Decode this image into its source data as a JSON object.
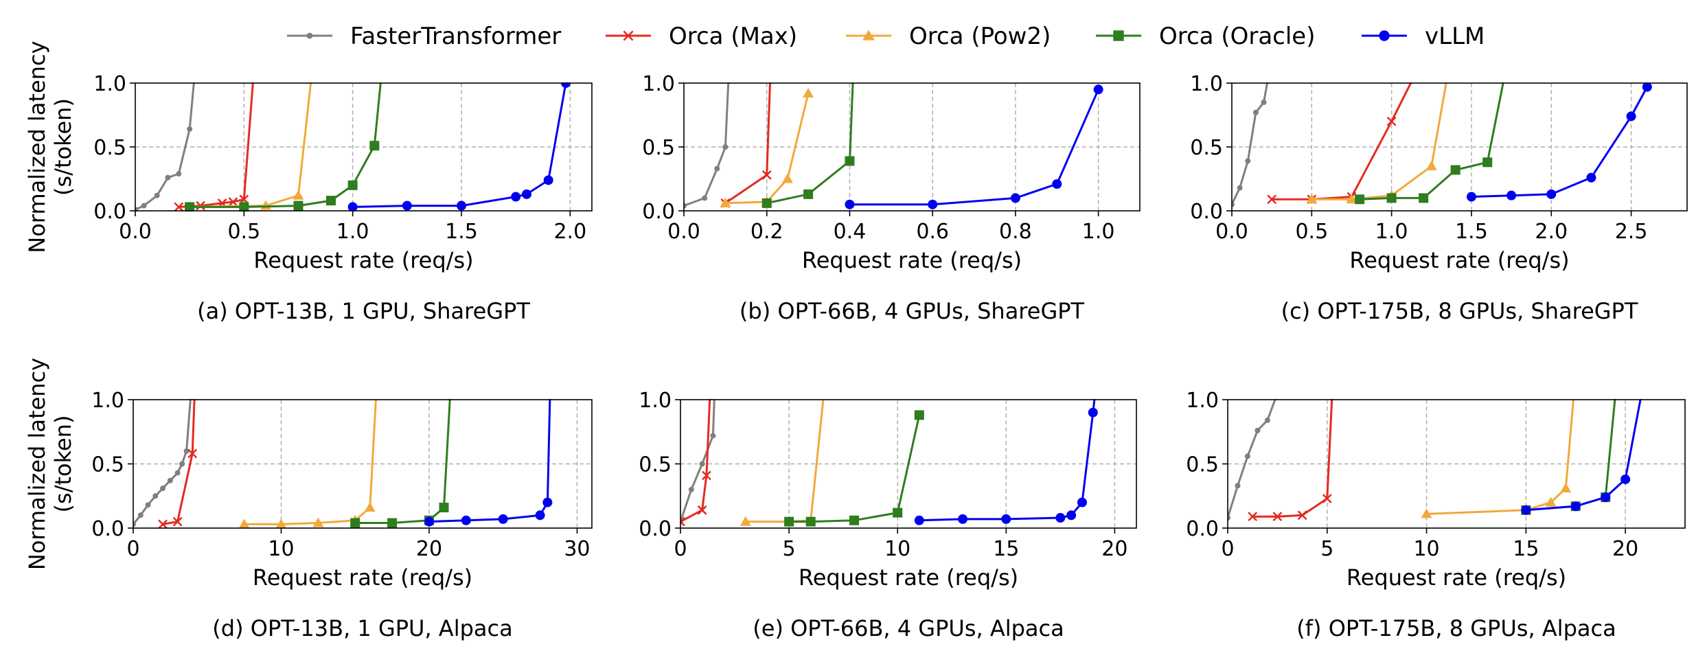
{
  "legend": [
    {
      "name": "FasterTransformer",
      "color": "#7f7f7f",
      "marker": "dot"
    },
    {
      "name": "Orca (Max)",
      "color": "#e32b20",
      "marker": "x"
    },
    {
      "name": "Orca (Pow2)",
      "color": "#f2a93b",
      "marker": "triangle"
    },
    {
      "name": "Orca (Oracle)",
      "color": "#2e7d1e",
      "marker": "square"
    },
    {
      "name": "vLLM",
      "color": "#0000f0",
      "marker": "circle"
    }
  ],
  "ylabel_line1": "Normalized latency",
  "ylabel_line2": "(s/token)",
  "xlabel": "Request rate (req/s)",
  "chart_data": [
    {
      "type": "line",
      "caption": "(a) OPT-13B, 1 GPU, ShareGPT",
      "xlim": [
        0,
        2.1
      ],
      "ylim": [
        0,
        1.0
      ],
      "xticks": [
        0.0,
        0.5,
        1.0,
        1.5,
        2.0
      ],
      "xtick_labels": [
        "0.0",
        "0.5",
        "1.0",
        "1.5",
        "2.0"
      ],
      "yticks": [
        0.0,
        0.5,
        1.0
      ],
      "ytick_labels": [
        "0.0",
        "0.5",
        "1.0"
      ],
      "grid": true,
      "series": [
        {
          "name": "FasterTransformer",
          "x": [
            0.0,
            0.04,
            0.1,
            0.15,
            0.2,
            0.25,
            0.28
          ],
          "y": [
            0.01,
            0.04,
            0.12,
            0.26,
            0.29,
            0.64,
            1.2
          ]
        },
        {
          "name": "Orca (Max)",
          "x": [
            0.2,
            0.3,
            0.4,
            0.45,
            0.5,
            0.55
          ],
          "y": [
            0.03,
            0.04,
            0.06,
            0.07,
            0.09,
            1.2
          ]
        },
        {
          "name": "Orca (Pow2)",
          "x": [
            0.25,
            0.6,
            0.75,
            0.82
          ],
          "y": [
            0.03,
            0.04,
            0.12,
            1.2
          ]
        },
        {
          "name": "Orca (Oracle)",
          "x": [
            0.25,
            0.5,
            0.75,
            0.9,
            1.0,
            1.1,
            1.14
          ],
          "y": [
            0.03,
            0.03,
            0.04,
            0.08,
            0.2,
            0.51,
            1.2
          ]
        },
        {
          "name": "vLLM",
          "x": [
            1.0,
            1.25,
            1.5,
            1.75,
            1.8,
            1.9,
            1.98,
            2.0
          ],
          "y": [
            0.03,
            0.04,
            0.04,
            0.11,
            0.13,
            0.24,
            1.0,
            1.2
          ]
        }
      ]
    },
    {
      "type": "line",
      "caption": "(b) OPT-66B, 4 GPUs, ShareGPT",
      "xlim": [
        0,
        1.1
      ],
      "ylim": [
        0,
        1.0
      ],
      "xticks": [
        0.0,
        0.2,
        0.4,
        0.6,
        0.8,
        1.0
      ],
      "xtick_labels": [
        "0.0",
        "0.2",
        "0.4",
        "0.6",
        "0.8",
        "1.0"
      ],
      "yticks": [
        0.0,
        0.5,
        1.0
      ],
      "ytick_labels": [
        "0.0",
        "0.5",
        "1.0"
      ],
      "grid": true,
      "series": [
        {
          "name": "FasterTransformer",
          "x": [
            0.0,
            0.05,
            0.08,
            0.1,
            0.11
          ],
          "y": [
            0.04,
            0.1,
            0.33,
            0.5,
            1.2
          ]
        },
        {
          "name": "Orca (Max)",
          "x": [
            0.1,
            0.2,
            0.21
          ],
          "y": [
            0.06,
            0.28,
            1.2
          ]
        },
        {
          "name": "Orca (Pow2)",
          "x": [
            0.1,
            0.2,
            0.25,
            0.3
          ],
          "y": [
            0.06,
            0.07,
            0.25,
            0.92
          ]
        },
        {
          "name": "Orca (Oracle)",
          "x": [
            0.2,
            0.3,
            0.4,
            0.41
          ],
          "y": [
            0.06,
            0.13,
            0.39,
            1.2
          ]
        },
        {
          "name": "vLLM",
          "x": [
            0.4,
            0.6,
            0.8,
            0.9,
            1.0
          ],
          "y": [
            0.05,
            0.05,
            0.1,
            0.21,
            0.95
          ]
        }
      ]
    },
    {
      "type": "line",
      "caption": "(c) OPT-175B, 8 GPUs, ShareGPT",
      "xlim": [
        0,
        2.85
      ],
      "ylim": [
        0,
        1.0
      ],
      "xticks": [
        0.0,
        0.5,
        1.0,
        1.5,
        2.0,
        2.5
      ],
      "xtick_labels": [
        "0.0",
        "0.5",
        "1.0",
        "1.5",
        "2.0",
        "2.5"
      ],
      "yticks": [
        0.0,
        0.5,
        1.0
      ],
      "ytick_labels": [
        "0.0",
        "0.5",
        "1.0"
      ],
      "grid": true,
      "series": [
        {
          "name": "FasterTransformer",
          "x": [
            0.0,
            0.05,
            0.1,
            0.15,
            0.2,
            0.25
          ],
          "y": [
            0.05,
            0.18,
            0.39,
            0.77,
            0.85,
            1.2
          ]
        },
        {
          "name": "Orca (Max)",
          "x": [
            0.25,
            0.5,
            0.75,
            1.0,
            1.2
          ],
          "y": [
            0.09,
            0.09,
            0.11,
            0.7,
            1.2
          ]
        },
        {
          "name": "Orca (Pow2)",
          "x": [
            0.5,
            0.75,
            1.0,
            1.25,
            1.37
          ],
          "y": [
            0.09,
            0.09,
            0.12,
            0.35,
            1.2
          ]
        },
        {
          "name": "Orca (Oracle)",
          "x": [
            0.8,
            1.0,
            1.2,
            1.4,
            1.6,
            1.73
          ],
          "y": [
            0.09,
            0.1,
            0.1,
            0.32,
            0.38,
            1.2
          ]
        },
        {
          "name": "vLLM",
          "x": [
            1.5,
            1.75,
            2.0,
            2.25,
            2.5,
            2.6
          ],
          "y": [
            0.11,
            0.12,
            0.13,
            0.26,
            0.74,
            0.97
          ]
        }
      ]
    },
    {
      "type": "line",
      "caption": "(d) OPT-13B, 1 GPU, Alpaca",
      "xlim": [
        0,
        31
      ],
      "ylim": [
        0,
        1.0
      ],
      "xticks": [
        0,
        10,
        20,
        30
      ],
      "xtick_labels": [
        "0",
        "10",
        "20",
        "30"
      ],
      "yticks": [
        0.0,
        0.5,
        1.0
      ],
      "ytick_labels": [
        "0.0",
        "0.5",
        "1.0"
      ],
      "grid": true,
      "series": [
        {
          "name": "FasterTransformer",
          "x": [
            0.0,
            0.5,
            1.0,
            1.5,
            2.0,
            2.5,
            3.0,
            3.3,
            3.6,
            4.0
          ],
          "y": [
            0.03,
            0.1,
            0.18,
            0.25,
            0.31,
            0.37,
            0.43,
            0.5,
            0.6,
            1.2
          ]
        },
        {
          "name": "Orca (Max)",
          "x": [
            2.0,
            3.0,
            4.0,
            4.2
          ],
          "y": [
            0.03,
            0.05,
            0.58,
            1.2
          ]
        },
        {
          "name": "Orca (Pow2)",
          "x": [
            7.5,
            10.0,
            12.5,
            15.0,
            16.0,
            16.5
          ],
          "y": [
            0.03,
            0.03,
            0.04,
            0.06,
            0.16,
            1.2
          ]
        },
        {
          "name": "Orca (Oracle)",
          "x": [
            15.0,
            17.5,
            20.0,
            21.0,
            21.5
          ],
          "y": [
            0.04,
            0.04,
            0.06,
            0.16,
            1.2
          ]
        },
        {
          "name": "vLLM",
          "x": [
            20.0,
            22.5,
            25.0,
            27.5,
            28.0,
            28.2
          ],
          "y": [
            0.05,
            0.06,
            0.07,
            0.1,
            0.2,
            1.2
          ]
        }
      ]
    },
    {
      "type": "line",
      "caption": "(e) OPT-66B, 4 GPUs, Alpaca",
      "xlim": [
        0,
        21
      ],
      "ylim": [
        0,
        1.0
      ],
      "xticks": [
        0,
        5,
        10,
        15,
        20
      ],
      "xtick_labels": [
        "0",
        "5",
        "10",
        "15",
        "20"
      ],
      "yticks": [
        0.0,
        0.5,
        1.0
      ],
      "ytick_labels": [
        "0.0",
        "0.5",
        "1.0"
      ],
      "grid": true,
      "series": [
        {
          "name": "FasterTransformer",
          "x": [
            0.0,
            0.5,
            1.0,
            1.5,
            1.6
          ],
          "y": [
            0.05,
            0.3,
            0.5,
            0.72,
            1.2
          ]
        },
        {
          "name": "Orca (Max)",
          "x": [
            0.0,
            1.0,
            1.2,
            1.4
          ],
          "y": [
            0.05,
            0.14,
            0.41,
            1.2
          ]
        },
        {
          "name": "Orca (Pow2)",
          "x": [
            3.0,
            5.0,
            6.0,
            6.7
          ],
          "y": [
            0.05,
            0.05,
            0.06,
            1.2
          ]
        },
        {
          "name": "Orca (Oracle)",
          "x": [
            5.0,
            6.0,
            8.0,
            10.0,
            11.0
          ],
          "y": [
            0.05,
            0.05,
            0.06,
            0.12,
            0.88
          ]
        },
        {
          "name": "vLLM",
          "x": [
            11.0,
            13.0,
            15.0,
            17.5,
            18.0,
            18.5,
            19.0,
            19.2
          ],
          "y": [
            0.06,
            0.07,
            0.07,
            0.08,
            0.1,
            0.2,
            0.9,
            1.2
          ]
        }
      ]
    },
    {
      "type": "line",
      "caption": "(f) OPT-175B, 8 GPUs, Alpaca",
      "xlim": [
        0,
        23
      ],
      "ylim": [
        0,
        1.0
      ],
      "xticks": [
        0,
        5,
        10,
        15,
        20
      ],
      "xtick_labels": [
        "0",
        "5",
        "10",
        "15",
        "20"
      ],
      "yticks": [
        0.0,
        0.5,
        1.0
      ],
      "ytick_labels": [
        "0.0",
        "0.5",
        "1.0"
      ],
      "grid": true,
      "series": [
        {
          "name": "FasterTransformer",
          "x": [
            0.0,
            0.5,
            1.0,
            1.5,
            2.0,
            2.5,
            3.0
          ],
          "y": [
            0.08,
            0.33,
            0.56,
            0.76,
            0.84,
            1.05,
            1.2
          ]
        },
        {
          "name": "Orca (Max)",
          "x": [
            1.25,
            2.5,
            3.75,
            5.0,
            5.3
          ],
          "y": [
            0.09,
            0.09,
            0.1,
            0.23,
            1.2
          ]
        },
        {
          "name": "Orca (Pow2)",
          "x": [
            10.0,
            15.0,
            16.25,
            17.0,
            17.5
          ],
          "y": [
            0.11,
            0.14,
            0.2,
            0.31,
            1.2
          ]
        },
        {
          "name": "Orca (Oracle)",
          "x": [
            15.0,
            17.5,
            19.0,
            19.6
          ],
          "y": [
            0.14,
            0.17,
            0.24,
            1.2
          ]
        },
        {
          "name": "vLLM",
          "x": [
            15.0,
            17.5,
            19.0,
            20.0,
            21.0
          ],
          "y": [
            0.14,
            0.17,
            0.24,
            0.38,
            1.2
          ]
        }
      ]
    }
  ]
}
